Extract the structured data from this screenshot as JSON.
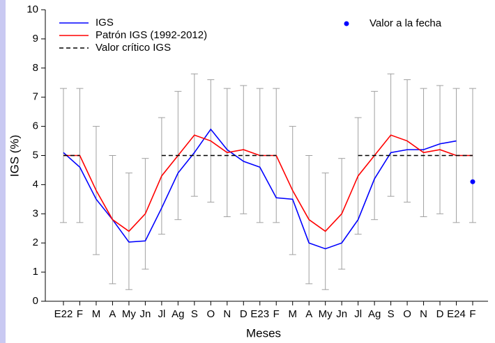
{
  "chart_data": {
    "type": "line",
    "xlabel": "Meses",
    "ylabel": "IGS (%)",
    "categories": [
      "E22",
      "F",
      "M",
      "A",
      "My",
      "Jn",
      "Jl",
      "Ag",
      "S",
      "O",
      "N",
      "D",
      "E23",
      "F",
      "M",
      "A",
      "My",
      "Jn",
      "Jl",
      "Ag",
      "S",
      "O",
      "N",
      "D",
      "E24",
      "F"
    ],
    "ylim": [
      0,
      10
    ],
    "yticks": [
      0,
      1,
      2,
      3,
      4,
      5,
      6,
      7,
      8,
      9,
      10
    ],
    "series": [
      {
        "name": "IGS",
        "color": "#0000ff",
        "style": "solid",
        "values": [
          5.1,
          4.6,
          3.5,
          2.8,
          2.03,
          2.07,
          3.2,
          4.4,
          5.1,
          5.9,
          5.2,
          4.8,
          4.6,
          3.55,
          3.5,
          2.0,
          1.8,
          2.0,
          2.8,
          4.2,
          5.1,
          5.2,
          5.2,
          5.4,
          5.5,
          null
        ]
      },
      {
        "name": "Patrón IGS (1992-2012)",
        "color": "#ff0000",
        "style": "solid",
        "error_color": "#a0a0a0",
        "values": [
          5.0,
          5.0,
          3.8,
          2.8,
          2.4,
          3.0,
          4.3,
          5.0,
          5.7,
          5.5,
          5.1,
          5.2,
          5.0,
          5.0,
          3.8,
          2.8,
          2.4,
          3.0,
          4.3,
          5.0,
          5.7,
          5.5,
          5.1,
          5.2,
          5.0,
          5.0
        ],
        "errors": [
          2.3,
          2.3,
          2.2,
          2.2,
          2.0,
          1.9,
          2.0,
          2.2,
          2.1,
          2.1,
          2.2,
          2.2,
          2.3,
          2.3,
          2.2,
          2.2,
          2.0,
          1.9,
          2.0,
          2.2,
          2.1,
          2.1,
          2.2,
          2.2,
          2.3,
          2.3
        ]
      },
      {
        "name": "Valor crítico IGS",
        "color": "#000000",
        "style": "dashed",
        "values": [
          5,
          5,
          null,
          null,
          null,
          null,
          5,
          5,
          5,
          5,
          5,
          5,
          5,
          5,
          null,
          null,
          null,
          null,
          5,
          5,
          5,
          5,
          5,
          5,
          5,
          5
        ]
      },
      {
        "name": "Valor a la fecha",
        "color": "#0000ff",
        "style": "marker",
        "values": [
          null,
          null,
          null,
          null,
          null,
          null,
          null,
          null,
          null,
          null,
          null,
          null,
          null,
          null,
          null,
          null,
          null,
          null,
          null,
          null,
          null,
          null,
          null,
          null,
          null,
          4.1
        ]
      }
    ]
  }
}
